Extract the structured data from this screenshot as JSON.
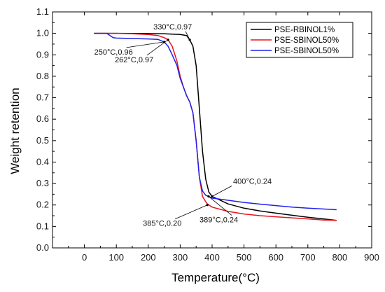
{
  "chart_data": {
    "type": "line",
    "title": "",
    "xlabel": "Temperature(°C)",
    "ylabel": "Weight retention",
    "xlim": [
      -100,
      900
    ],
    "ylim": [
      0.0,
      1.1
    ],
    "xticks": [
      "0",
      "100",
      "200",
      "300",
      "400",
      "500",
      "600",
      "700",
      "800",
      "900"
    ],
    "yticks": [
      "0.0",
      "0.1",
      "0.2",
      "0.3",
      "0.4",
      "0.5",
      "0.6",
      "0.7",
      "0.8",
      "0.9",
      "1.0",
      "1.1"
    ],
    "grid": false,
    "legend_position": "top-right",
    "series": [
      {
        "name": "PSE-RBINOL1%",
        "color": "#000000",
        "points": [
          [
            30,
            1.0
          ],
          [
            100,
            1.0
          ],
          [
            200,
            0.999
          ],
          [
            250,
            0.998
          ],
          [
            300,
            0.995
          ],
          [
            320,
            0.99
          ],
          [
            330,
            0.97
          ],
          [
            340,
            0.94
          ],
          [
            350,
            0.85
          ],
          [
            360,
            0.65
          ],
          [
            370,
            0.45
          ],
          [
            380,
            0.32
          ],
          [
            390,
            0.26
          ],
          [
            400,
            0.24
          ],
          [
            450,
            0.205
          ],
          [
            500,
            0.185
          ],
          [
            550,
            0.172
          ],
          [
            600,
            0.162
          ],
          [
            650,
            0.152
          ],
          [
            700,
            0.143
          ],
          [
            750,
            0.135
          ],
          [
            790,
            0.128
          ]
        ]
      },
      {
        "name": "PSE-SBINOL50%",
        "color": "#e8141c",
        "points": [
          [
            30,
            1.0
          ],
          [
            100,
            1.0
          ],
          [
            150,
            0.998
          ],
          [
            200,
            0.995
          ],
          [
            230,
            0.99
          ],
          [
            250,
            0.98
          ],
          [
            262,
            0.97
          ],
          [
            275,
            0.94
          ],
          [
            290,
            0.87
          ],
          [
            300,
            0.8
          ],
          [
            310,
            0.75
          ],
          [
            320,
            0.71
          ],
          [
            330,
            0.68
          ],
          [
            340,
            0.63
          ],
          [
            350,
            0.5
          ],
          [
            360,
            0.33
          ],
          [
            370,
            0.24
          ],
          [
            380,
            0.215
          ],
          [
            385,
            0.205
          ],
          [
            400,
            0.19
          ],
          [
            450,
            0.17
          ],
          [
            500,
            0.158
          ],
          [
            550,
            0.15
          ],
          [
            600,
            0.145
          ],
          [
            650,
            0.14
          ],
          [
            700,
            0.135
          ],
          [
            750,
            0.13
          ],
          [
            790,
            0.128
          ]
        ]
      },
      {
        "name": "PSE-SBINOL50%",
        "color": "#2020ee",
        "points": [
          [
            30,
            1.0
          ],
          [
            70,
            1.0
          ],
          [
            80,
            0.99
          ],
          [
            90,
            0.98
          ],
          [
            100,
            0.978
          ],
          [
            150,
            0.976
          ],
          [
            200,
            0.974
          ],
          [
            230,
            0.972
          ],
          [
            250,
            0.96
          ],
          [
            262,
            0.94
          ],
          [
            275,
            0.9
          ],
          [
            290,
            0.85
          ],
          [
            300,
            0.79
          ],
          [
            310,
            0.75
          ],
          [
            320,
            0.71
          ],
          [
            330,
            0.68
          ],
          [
            340,
            0.63
          ],
          [
            350,
            0.5
          ],
          [
            360,
            0.33
          ],
          [
            370,
            0.265
          ],
          [
            380,
            0.245
          ],
          [
            389,
            0.24
          ],
          [
            400,
            0.232
          ],
          [
            450,
            0.222
          ],
          [
            500,
            0.212
          ],
          [
            550,
            0.204
          ],
          [
            600,
            0.197
          ],
          [
            650,
            0.19
          ],
          [
            700,
            0.185
          ],
          [
            750,
            0.181
          ],
          [
            790,
            0.178
          ]
        ]
      }
    ],
    "annotations": [
      {
        "text": "330°C,0.97",
        "x": 330,
        "y": 0.97
      },
      {
        "text": "250°C,0.96",
        "x": 250,
        "y": 0.96
      },
      {
        "text": "262°C,0.97",
        "x": 262,
        "y": 0.97
      },
      {
        "text": "400°C,0.24",
        "x": 400,
        "y": 0.24
      },
      {
        "text": "385°C,0.20",
        "x": 385,
        "y": 0.2
      },
      {
        "text": "389°C,0.24",
        "x": 389,
        "y": 0.24
      }
    ]
  }
}
